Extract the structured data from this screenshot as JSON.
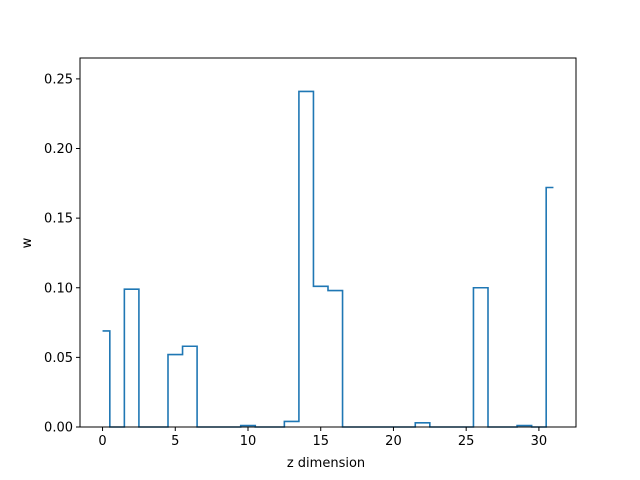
{
  "chart_data": {
    "type": "line",
    "drawstyle": "steps-mid",
    "xlabel": "z dimension",
    "ylabel": "w",
    "xlim": [
      -1.55,
      32.55
    ],
    "ylim": [
      0.0,
      0.265
    ],
    "x_ticks": [
      0,
      5,
      10,
      15,
      20,
      25,
      30
    ],
    "y_ticks": [
      0.0,
      0.05,
      0.1,
      0.15,
      0.2,
      0.25
    ],
    "y_tick_labels": [
      "0.00",
      "0.05",
      "0.10",
      "0.15",
      "0.20",
      "0.25"
    ],
    "grid": false,
    "line_color": "#1f77b4",
    "series": [
      {
        "x": [
          0,
          1,
          2,
          3,
          4,
          5,
          6,
          7,
          8,
          9,
          10,
          11,
          12,
          13,
          14,
          15,
          16,
          17,
          18,
          19,
          20,
          21,
          22,
          23,
          24,
          25,
          26,
          27,
          28,
          29,
          30,
          31
        ],
        "values": [
          0.069,
          0.0,
          0.099,
          0.0,
          0.0,
          0.052,
          0.058,
          0.0,
          0.0,
          0.0,
          0.001,
          0.0,
          0.0,
          0.004,
          0.241,
          0.101,
          0.098,
          0.0,
          0.0,
          0.0,
          0.0,
          0.0,
          0.003,
          0.0,
          0.0,
          0.0,
          0.1,
          0.0,
          0.0,
          0.001,
          0.0,
          0.172
        ]
      }
    ]
  }
}
